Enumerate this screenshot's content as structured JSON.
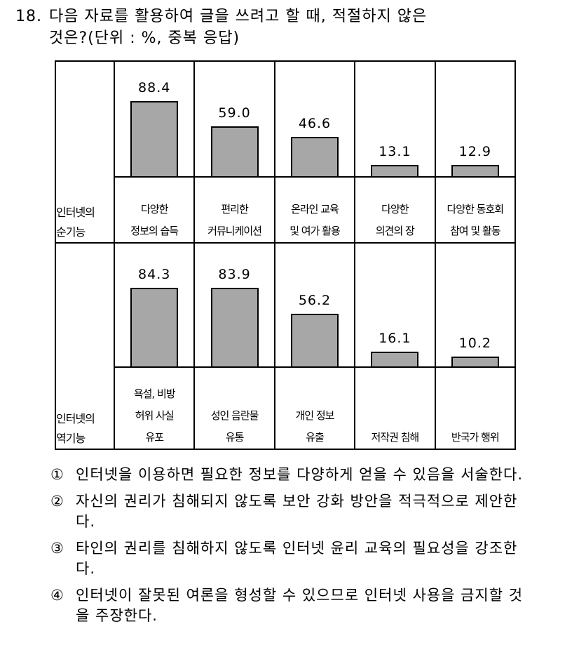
{
  "question": {
    "number": "18.",
    "line1": "다음 자료를 활용하여 글을 쓰려고 할 때, 적절하지 않은",
    "line2": "것은?(단위 : %, 중복 응답)"
  },
  "chart_data": {
    "type": "bar",
    "groups": [
      {
        "label_line1": "인터넷의",
        "label_line2": "순기능",
        "categories": [
          [
            "다양한",
            "정보의 습득"
          ],
          [
            "편리한",
            "커뮤니케이션"
          ],
          [
            "온라인 교육",
            "및 여가 활용"
          ],
          [
            "다양한",
            "의견의 장"
          ],
          [
            "다양한 동호회",
            "참여 및 활동"
          ]
        ],
        "values": [
          88.4,
          59.0,
          46.6,
          13.1,
          12.9
        ],
        "value_labels": [
          "88.4",
          "59.0",
          "46.6",
          "13.1",
          "12.9"
        ]
      },
      {
        "label_line1": "인터넷의",
        "label_line2": "역기능",
        "categories": [
          [
            "욕설, 비방",
            "허위 사실",
            "유포"
          ],
          [
            "성인 음란물",
            "유통"
          ],
          [
            "개인 정보",
            "유출"
          ],
          [
            "저작권 침해"
          ],
          [
            "반국가 행위"
          ]
        ],
        "values": [
          84.3,
          83.9,
          56.2,
          16.1,
          10.2
        ],
        "value_labels": [
          "84.3",
          "83.9",
          "56.2",
          "16.1",
          "10.2"
        ]
      }
    ],
    "ylim": [
      0,
      100
    ],
    "bar_color": "#a7a7a7"
  },
  "choices": [
    {
      "mark": "①",
      "text": "인터넷을 이용하면 필요한 정보를 다양하게 얻을 수 있음을 서술한다."
    },
    {
      "mark": "②",
      "text": "자신의 권리가 침해되지 않도록 보안 강화 방안을 적극적으로 제안한다."
    },
    {
      "mark": "③",
      "text": "타인의 권리를 침해하지 않도록 인터넷 윤리 교육의 필요성을 강조한다."
    },
    {
      "mark": "④",
      "text": "인터넷이 잘못된 여론을 형성할 수 있으므로 인터넷 사용을 금지할 것을 주장한다."
    }
  ]
}
